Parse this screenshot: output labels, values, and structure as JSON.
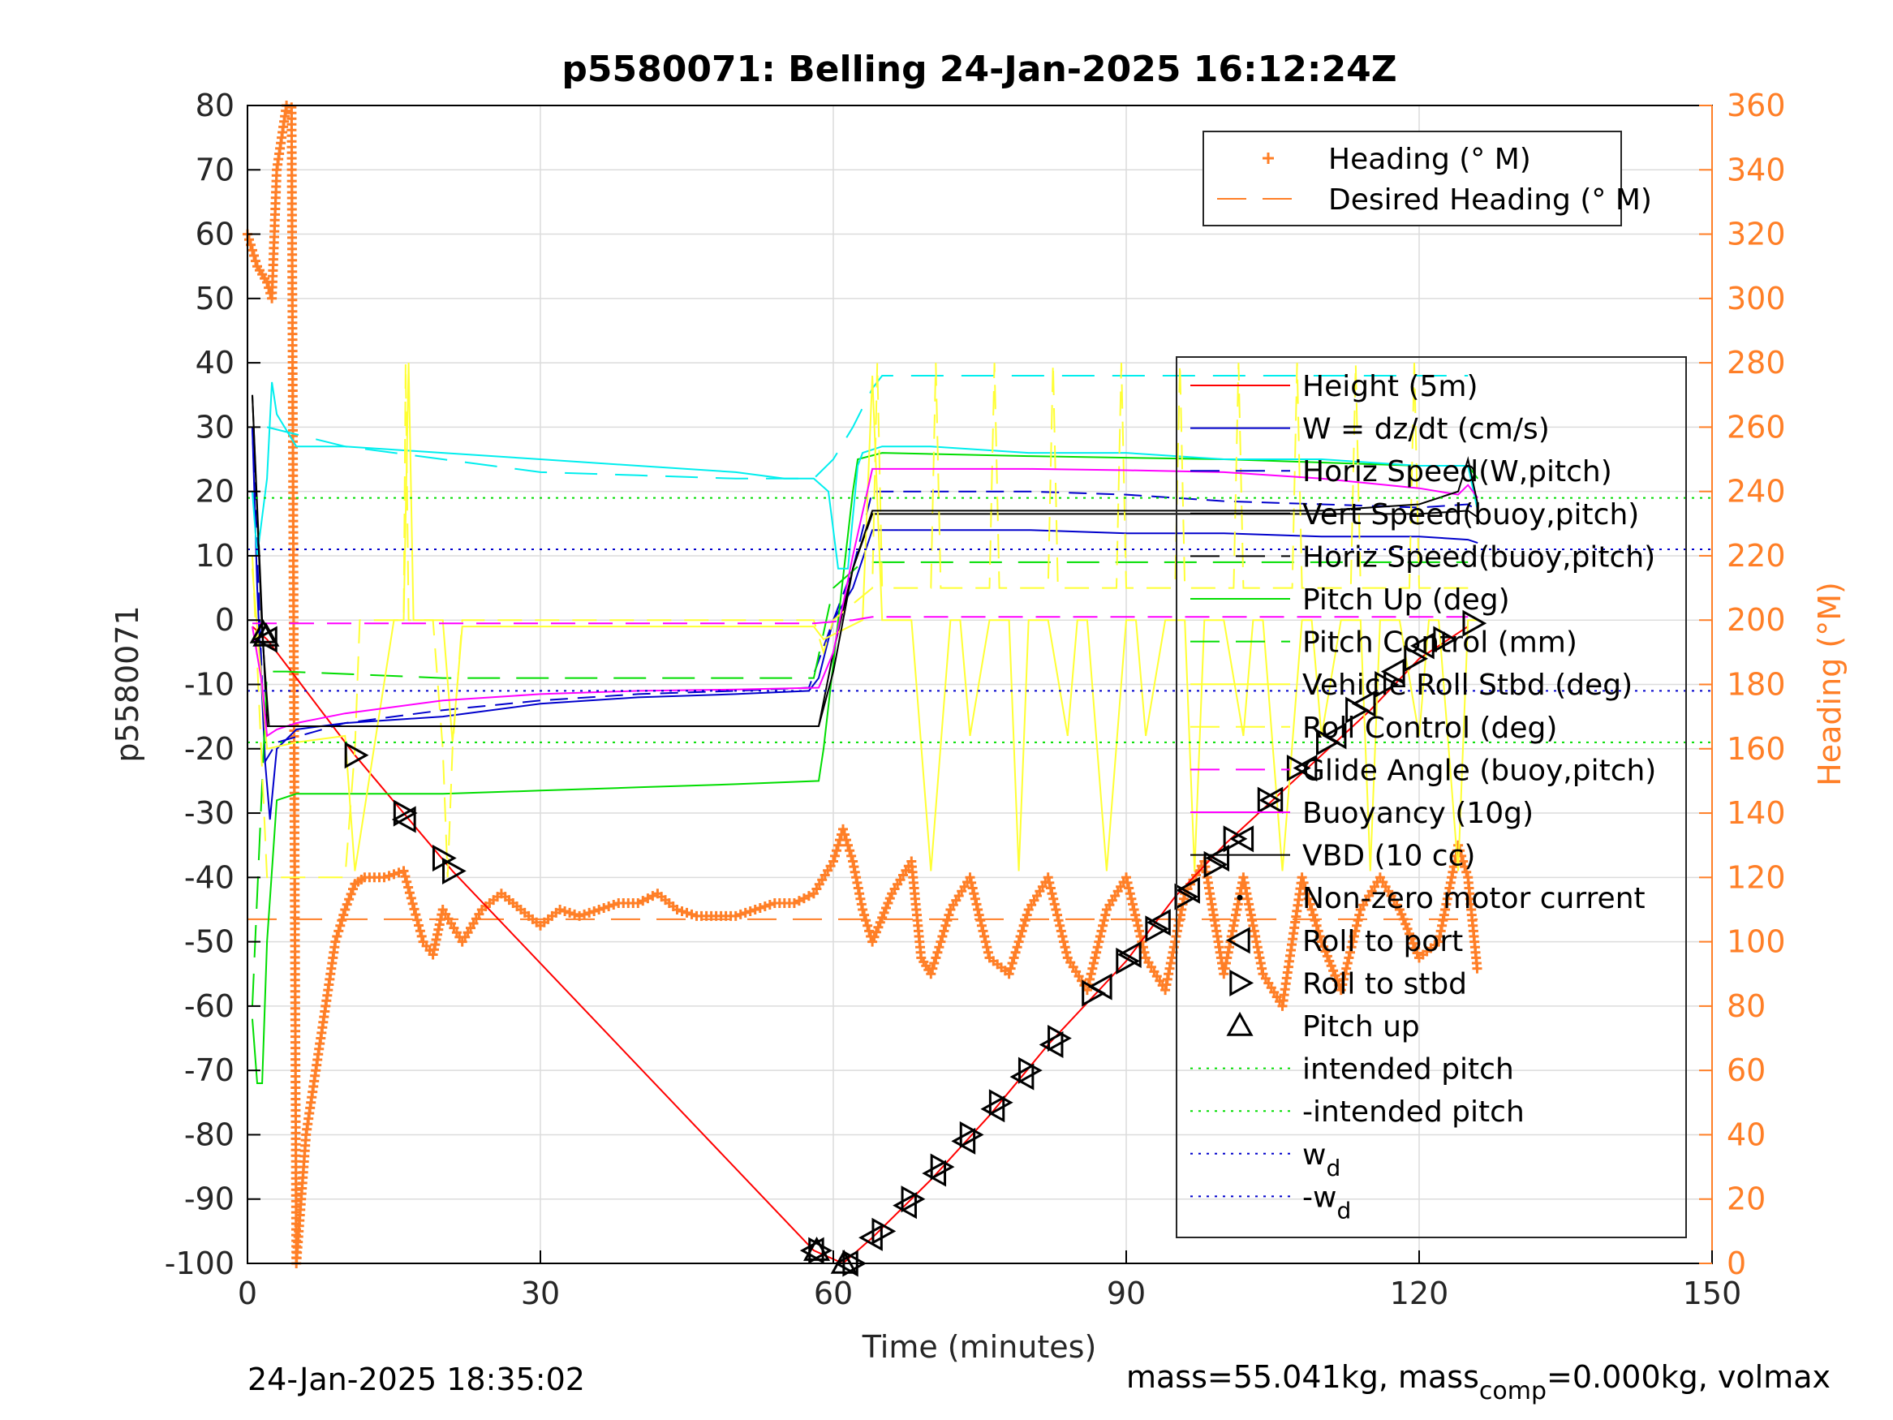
{
  "chart_data": {
    "type": "line",
    "title": "p5580071: Belling 24-Jan-2025 16:12:24Z",
    "xlabel": "Time (minutes)",
    "ylabel_left": "p5580071",
    "ylabel_right": "Heading (°M)",
    "xlim": [
      0,
      150
    ],
    "ylim_left": [
      -100,
      80
    ],
    "ylim_right": [
      0,
      360
    ],
    "xticks": [
      0,
      30,
      60,
      90,
      120,
      150
    ],
    "yticks_left": [
      80,
      70,
      60,
      50,
      40,
      30,
      20,
      10,
      0,
      -10,
      -20,
      -30,
      -40,
      -50,
      -60,
      -70,
      -80,
      -90,
      -100
    ],
    "yticks_right": [
      360,
      340,
      320,
      300,
      280,
      260,
      240,
      220,
      200,
      180,
      160,
      140,
      120,
      100,
      80,
      60,
      40,
      20,
      0
    ],
    "grid": true,
    "footer_left": "24-Jan-2025 18:35:02",
    "footer_right": {
      "pre": "mass=55.041kg, mass",
      "sub": "comp",
      "post": "=0.000kg, volmax"
    },
    "legend_heading": [
      {
        "label": "Heading (° M)",
        "color": "#ff7f27",
        "style": "plus"
      },
      {
        "label": "Desired Heading (° M)",
        "color": "#ff7f27",
        "style": "dashed"
      }
    ],
    "legend_main": [
      {
        "label": "Height (5m)",
        "color": "#ff0000",
        "style": "solid"
      },
      {
        "label": "W = dz/dt (cm/s)",
        "color": "#0000cc",
        "style": "solid"
      },
      {
        "label": "Horiz Speed(W,pitch)",
        "color": "#0000cc",
        "style": "dashed"
      },
      {
        "label": "Vert Speed(buoy,pitch)",
        "color": "#000000",
        "style": "solid"
      },
      {
        "label": "Horiz Speed(buoy,pitch)",
        "color": "#000000",
        "style": "dashed"
      },
      {
        "label": "Pitch Up (deg)",
        "color": "#00dd00",
        "style": "solid"
      },
      {
        "label": "Pitch Control (mm)",
        "color": "#00dd00",
        "style": "dashed"
      },
      {
        "label": "Vehicle Roll Stbd (deg)",
        "color": "#ffff33",
        "style": "solid"
      },
      {
        "label": "Roll Control (deg)",
        "color": "#ffff33",
        "style": "dashed"
      },
      {
        "label": "Glide Angle (buoy,pitch)",
        "color": "#ff00ff",
        "style": "dashed"
      },
      {
        "label": "Buoyancy (10g)",
        "color": "#ff00ff",
        "style": "solid"
      },
      {
        "label": "VBD (10 cc)",
        "color": "#000000",
        "style": "solid"
      },
      {
        "label": "Non-zero motor current",
        "color": "#000000",
        "style": "dot"
      },
      {
        "label": "Roll to port",
        "color": "#000000",
        "style": "tri-left"
      },
      {
        "label": "Roll to stbd",
        "color": "#000000",
        "style": "tri-right"
      },
      {
        "label": "Pitch up",
        "color": "#000000",
        "style": "tri-up"
      },
      {
        "label": "intended pitch",
        "color": "#00dd00",
        "style": "dotted"
      },
      {
        "label": "-intended pitch",
        "color": "#00dd00",
        "style": "dotted"
      },
      {
        "label": "w",
        "sub": "d",
        "color": "#0000cc",
        "style": "dotted"
      },
      {
        "label": "-w",
        "sub": "d",
        "color": "#0000cc",
        "style": "dotted"
      }
    ],
    "series": [
      {
        "name": "Height (5m)",
        "color": "#ff0000",
        "x": [
          0.5,
          2,
          11,
          16,
          21,
          58,
          61,
          64,
          70,
          76,
          82,
          90,
          95,
          100,
          105,
          110,
          115,
          120,
          125
        ],
        "y": [
          -1,
          -3,
          -21,
          -30,
          -39,
          -98,
          -100,
          -96,
          -87,
          -77,
          -66,
          -53,
          -43,
          -35,
          -28,
          -21,
          -14,
          -6,
          -1
        ]
      },
      {
        "name": "W = dz/dt (cm/s)",
        "color": "#0000cc",
        "x": [
          0.5,
          1,
          1.8,
          2.3,
          3,
          5,
          10,
          20,
          30,
          40,
          50,
          57.5,
          58.5,
          60,
          62,
          64,
          70,
          80,
          90,
          100,
          110,
          120,
          125,
          126
        ],
        "y": [
          30,
          5,
          -22,
          -31,
          -20,
          -17,
          -16,
          -15,
          -13,
          -12,
          -11.5,
          -11,
          -9,
          0,
          5,
          14,
          14,
          14,
          13.5,
          13.5,
          13,
          13,
          12.5,
          12
        ]
      },
      {
        "name": "Horiz Speed(W,pitch)",
        "color": "#0000cc",
        "x": [
          0.5,
          1.8,
          3,
          10,
          20,
          30,
          40,
          50,
          57.5,
          60,
          62,
          64,
          70,
          80,
          90,
          100,
          110,
          120,
          125,
          126
        ],
        "y": [
          30,
          -22,
          -19,
          -16,
          -14,
          -12.5,
          -11.5,
          -11,
          -10.5,
          0,
          8,
          20,
          20,
          20,
          19.5,
          18.5,
          18,
          17.5,
          18,
          17
        ]
      },
      {
        "name": "Vert Speed(buoy,pitch)",
        "color": "#000000",
        "x": [
          0.5,
          1.5,
          2,
          58.5,
          60,
          62,
          64,
          80,
          100,
          120,
          125,
          126
        ],
        "y": [
          35,
          0,
          -16.5,
          -16.5,
          -5,
          8,
          16.5,
          16.5,
          16.5,
          16.5,
          17,
          16
        ]
      },
      {
        "name": "Pitch Up (deg)",
        "color": "#00dd00",
        "x": [
          0.5,
          1,
          1.5,
          2,
          2.5,
          3,
          5,
          10,
          20,
          30,
          40,
          50,
          58.5,
          59,
          62,
          62.5,
          65,
          80,
          100,
          120,
          125,
          126
        ],
        "y": [
          -62,
          -72,
          -72,
          -50,
          -39,
          -28,
          -27,
          -27,
          -27,
          -26.5,
          -26,
          -25.5,
          -25,
          -20,
          20,
          25,
          26,
          25.5,
          25,
          24,
          24,
          22
        ]
      },
      {
        "name": "Pitch Control (mm)",
        "color": "#00dd00",
        "x": [
          0.5,
          2,
          4,
          20,
          40,
          58,
          60,
          63,
          65,
          80,
          100,
          120,
          125
        ],
        "y": [
          -60,
          -8,
          -8,
          -9,
          -9,
          -9,
          5,
          9,
          9,
          9,
          9,
          9,
          9
        ]
      },
      {
        "name": "Heading speed cyan",
        "color": "#00eeee",
        "x": [
          0.5,
          1,
          2,
          2.5,
          3,
          5,
          10,
          20,
          30,
          40,
          50,
          55,
          58,
          59.5,
          60.5,
          61.5,
          62.5,
          63,
          65,
          70,
          80,
          90,
          100,
          110,
          120,
          124,
          125,
          126
        ],
        "y": [
          20,
          10,
          22,
          37,
          32,
          27,
          27,
          26,
          25,
          24,
          23,
          22,
          22,
          20,
          8,
          8,
          24,
          26,
          27,
          27,
          26,
          26,
          25,
          25,
          24,
          24,
          24,
          17
        ]
      },
      {
        "name": "Horiz Speed(buoy,pitch)",
        "color": "#00eeee",
        "x": [
          2,
          10,
          20,
          30,
          40,
          50,
          58,
          60,
          62,
          64,
          65,
          80,
          100,
          120,
          125
        ],
        "y": [
          30,
          27,
          25,
          23,
          22.5,
          22,
          22,
          25,
          30,
          36,
          38,
          38,
          38,
          38,
          38
        ]
      },
      {
        "name": "Roll Control (deg)",
        "color": "#ffff33",
        "x": [
          0.5,
          2,
          2.5,
          10,
          11,
          11.5,
          15,
          16,
          16.2,
          16.5,
          19,
          20,
          20.5,
          21,
          22,
          30,
          40,
          50,
          58,
          59,
          60,
          64,
          64.5,
          65,
          70,
          70.5,
          71,
          76,
          76.5,
          77,
          82,
          82.5,
          83,
          89,
          89.5,
          90,
          95,
          95.5,
          96,
          101,
          101.5,
          102,
          107,
          107.5,
          108,
          113,
          113.5,
          114,
          119,
          119.5,
          120,
          125,
          126
        ],
        "y": [
          10,
          -40,
          -40,
          -40,
          -20,
          0,
          0,
          0,
          40,
          0,
          0,
          -20,
          -40,
          -20,
          0,
          0,
          0,
          0,
          0,
          -5,
          0,
          5,
          40,
          5,
          5,
          40,
          5,
          5,
          40,
          5,
          5,
          40,
          5,
          5,
          40,
          5,
          5,
          40,
          5,
          5,
          40,
          5,
          5,
          40,
          5,
          5,
          40,
          5,
          5,
          40,
          5,
          5,
          5
        ]
      },
      {
        "name": "Vehicle Roll Stbd (deg)",
        "color": "#ffff33",
        "x": [
          0.5,
          2,
          5,
          10,
          11,
          15,
          16,
          16.5,
          17,
          20,
          21,
          22,
          58,
          59,
          63,
          64,
          65,
          68,
          70,
          72,
          73,
          74,
          76,
          78,
          79,
          80,
          82,
          84,
          85,
          86,
          88,
          90,
          91,
          92,
          94,
          96,
          97,
          98,
          100,
          102,
          103,
          104,
          106,
          108,
          109,
          110,
          112,
          114,
          115,
          116,
          118,
          120,
          121,
          122,
          124,
          125,
          126
        ],
        "y": [
          8,
          -20,
          -19,
          -18,
          -39,
          0,
          0,
          40,
          0,
          0,
          -19,
          -1,
          -1,
          -3,
          0,
          38,
          0,
          0,
          -39,
          0,
          0,
          -18,
          0,
          0,
          -39,
          0,
          0,
          -18,
          0,
          0,
          -39,
          0,
          0,
          -18,
          0,
          0,
          -39,
          0,
          0,
          -18,
          0,
          0,
          -39,
          0,
          0,
          -18,
          0,
          0,
          -39,
          0,
          0,
          -18,
          0,
          0,
          -39,
          0,
          0
        ]
      },
      {
        "name": "Glide Angle (buoy,pitch)",
        "color": "#ff00ff",
        "x": [
          0.5,
          5,
          20,
          40,
          58,
          62,
          64,
          80,
          100,
          120,
          125
        ],
        "y": [
          -0.5,
          -0.5,
          -0.5,
          -0.5,
          -0.5,
          0,
          0.5,
          0.5,
          0.5,
          0.5,
          0.5
        ]
      },
      {
        "name": "Buoyancy (10g)",
        "color": "#ff00ff",
        "x": [
          0.5,
          1.5,
          2,
          3,
          5,
          10,
          20,
          30,
          40,
          50,
          58.5,
          60,
          62,
          64,
          70,
          80,
          90,
          100,
          110,
          120,
          124,
          125,
          126
        ],
        "y": [
          -1,
          -10,
          -18,
          -17,
          -16,
          -14.5,
          -12.5,
          -11.5,
          -11,
          -10.8,
          -10.5,
          -5,
          10,
          23.5,
          23.5,
          23.5,
          23.3,
          23,
          22,
          20.5,
          19.5,
          21,
          19
        ]
      },
      {
        "name": "VBD (10 cc)",
        "color": "#000000",
        "x": [
          0.5,
          1.5,
          2.2,
          58.5,
          60,
          62,
          64,
          80,
          100,
          110,
          120,
          124,
          125,
          126
        ],
        "y": [
          35,
          -2,
          -16.5,
          -16.5,
          -8,
          8,
          17,
          17,
          17,
          17,
          18,
          20,
          25,
          18
        ]
      },
      {
        "name": "Heading (° M)",
        "color": "#ff7f27",
        "axis": "right",
        "x": [
          0,
          1,
          2,
          2.5,
          3,
          3.5,
          4,
          4.5,
          5,
          5.5,
          6,
          7,
          8,
          9,
          10,
          11,
          12,
          14,
          16,
          18,
          19,
          20,
          22,
          24,
          26,
          28,
          30,
          32,
          34,
          36,
          38,
          40,
          42,
          44,
          46,
          48,
          50,
          52,
          54,
          56,
          58,
          60,
          61,
          62,
          63,
          64,
          66,
          68,
          69,
          70,
          72,
          74,
          76,
          78,
          80,
          82,
          84,
          86,
          88,
          90,
          92,
          94,
          96,
          98,
          100,
          102,
          104,
          106,
          108,
          110,
          112,
          114,
          116,
          118,
          120,
          122,
          124,
          125,
          126
        ],
        "y": [
          320,
          310,
          305,
          300,
          340,
          350,
          360,
          370,
          0,
          20,
          40,
          60,
          80,
          100,
          110,
          118,
          120,
          120,
          122,
          100,
          96,
          110,
          100,
          110,
          115,
          110,
          105,
          110,
          108,
          110,
          112,
          112,
          115,
          110,
          108,
          108,
          108,
          110,
          112,
          112,
          115,
          125,
          135,
          125,
          110,
          100,
          115,
          125,
          95,
          90,
          110,
          120,
          95,
          90,
          110,
          120,
          95,
          85,
          110,
          120,
          95,
          85,
          115,
          125,
          90,
          120,
          90,
          80,
          120,
          100,
          85,
          110,
          120,
          110,
          95,
          100,
          130,
          120,
          90
        ]
      },
      {
        "name": "Desired Heading (° M)",
        "color": "#ff7f27",
        "axis": "right",
        "x": [
          0,
          126
        ],
        "y": [
          107,
          107
        ]
      }
    ],
    "constants": {
      "intended_pitch": 19,
      "w_d": 11
    },
    "markers": {
      "pitch_up": {
        "x": [
          1.6,
          1.9,
          58.3,
          61.1
        ],
        "y": [
          -2,
          -2.5,
          -98,
          -100
        ]
      },
      "roll_port": {
        "x": [
          2,
          16.2,
          58,
          61.5,
          64,
          67.5,
          70.5,
          73.5,
          76.5,
          79.5,
          82.5,
          87.5,
          90.5,
          93.5,
          96.5,
          99.5,
          102,
          105,
          108.5,
          111.5,
          114.5,
          117.5,
          120.5
        ],
        "y": [
          -3,
          -31,
          -98,
          -100,
          -96,
          -91,
          -86,
          -81,
          -76,
          -71,
          -66,
          -57,
          -52,
          -47,
          -42,
          -37,
          -34,
          -28,
          -23,
          -18,
          -13,
          -8,
          -4
        ]
      },
      "roll_stbd": {
        "x": [
          11,
          16,
          20,
          21,
          58.5,
          62,
          65,
          68,
          71,
          74,
          77,
          80,
          83,
          86.5,
          90,
          93,
          96,
          99,
          101,
          104.5,
          107.5,
          110.5,
          113.5,
          116.5,
          119.5,
          122.5,
          125.5
        ],
        "y": [
          -21,
          -30,
          -37,
          -39,
          -98,
          -100,
          -95,
          -90,
          -85,
          -80,
          -75,
          -70,
          -65,
          -58,
          -53,
          -48,
          -43,
          -38,
          -34,
          -28,
          -23,
          -19,
          -14,
          -10,
          -6,
          -3,
          -0.5
        ]
      }
    }
  }
}
